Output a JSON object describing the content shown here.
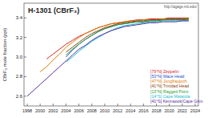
{
  "chart_data": {
    "type": "line",
    "title": "H-1301 (CBrF₃)",
    "y_label": "CBrF₃ mole fraction (ppt)",
    "source": "http://agage.mit.edu/",
    "x": [
      1998,
      1999,
      2000,
      2001,
      2002,
      2003,
      2004,
      2005,
      2006,
      2007,
      2008,
      2009,
      2010,
      2011,
      2012,
      2013,
      2014,
      2015,
      2016,
      2017,
      2018,
      2019,
      2020,
      2021,
      2022,
      2023
    ],
    "xlim": [
      1997.5,
      2024.5
    ],
    "xticks": [
      1998,
      2000,
      2002,
      2004,
      2006,
      2008,
      2010,
      2012,
      2014,
      2016,
      2018,
      2020,
      2022,
      2024
    ],
    "ylim": [
      2.5,
      3.55
    ],
    "yticks": [
      2.6,
      2.8,
      {
        "value": 3,
        "label": "3.0"
      },
      3.2,
      3.4
    ],
    "grid": false,
    "legend": "lower right",
    "series": [
      {
        "name": "[79°N] Zeppelin",
        "color": "#d62728",
        "values": [
          null,
          null,
          null,
          2.98,
          3.03,
          3.08,
          3.13,
          3.17,
          3.21,
          3.24,
          3.27,
          3.3,
          3.32,
          3.34,
          3.35,
          3.36,
          3.37,
          3.38,
          3.38,
          3.39,
          3.39,
          3.39,
          3.4,
          3.4,
          3.4,
          3.4
        ]
      },
      {
        "name": "[53°N] Mace Head",
        "color": "#1f4fcf",
        "values": [
          null,
          null,
          null,
          null,
          null,
          null,
          3.0,
          3.07,
          3.13,
          3.18,
          3.22,
          3.26,
          3.29,
          3.31,
          3.33,
          3.34,
          3.35,
          3.36,
          3.36,
          3.37,
          3.37,
          3.38,
          3.38,
          3.38,
          3.38,
          3.39
        ]
      },
      {
        "name": "[47°N] Jungfraujoch",
        "color": "#e07b00",
        "values": [
          null,
          null,
          2.85,
          2.9,
          2.97,
          3.03,
          3.1,
          3.15,
          3.2,
          3.24,
          3.27,
          3.3,
          3.32,
          3.34,
          3.35,
          3.36,
          3.37,
          3.37,
          3.38,
          3.38,
          3.38,
          3.39,
          3.39,
          3.39,
          3.39,
          3.4
        ]
      },
      {
        "name": "[41°N] Trinidad Head",
        "color": "#8b4513",
        "values": [
          null,
          null,
          null,
          null,
          null,
          null,
          3.05,
          3.1,
          3.15,
          3.2,
          3.24,
          3.27,
          3.3,
          3.32,
          3.34,
          3.35,
          3.36,
          3.37,
          3.37,
          3.38,
          3.38,
          3.38,
          3.39,
          3.39,
          3.39,
          3.39
        ]
      },
      {
        "name": "[13°N] Ragged Point",
        "color": "#2ca02c",
        "values": [
          null,
          null,
          null,
          null,
          null,
          null,
          3.02,
          3.08,
          3.13,
          3.18,
          3.22,
          3.26,
          3.29,
          3.31,
          3.33,
          3.34,
          3.35,
          3.36,
          3.36,
          3.37,
          3.37,
          3.38,
          3.38,
          3.38,
          3.38,
          3.38
        ]
      },
      {
        "name": "[14°S] Cape Matatula",
        "color": "#17becf",
        "values": [
          null,
          null,
          null,
          null,
          null,
          null,
          2.95,
          3.0,
          3.06,
          3.11,
          3.16,
          3.2,
          3.24,
          3.27,
          3.3,
          3.32,
          3.33,
          3.34,
          3.35,
          3.36,
          3.36,
          3.37,
          3.37,
          3.37,
          3.37,
          3.37
        ]
      },
      {
        "name": "[41°S] Kennaook/Cape Grim",
        "color": "#5a2d9c",
        "values": [
          2.6,
          2.66,
          2.72,
          2.78,
          2.84,
          2.9,
          2.96,
          3.02,
          3.08,
          3.12,
          3.17,
          3.21,
          3.24,
          3.27,
          3.29,
          3.31,
          3.32,
          3.33,
          3.34,
          3.35,
          3.35,
          3.36,
          3.36,
          3.36,
          3.37,
          3.37
        ]
      }
    ]
  }
}
